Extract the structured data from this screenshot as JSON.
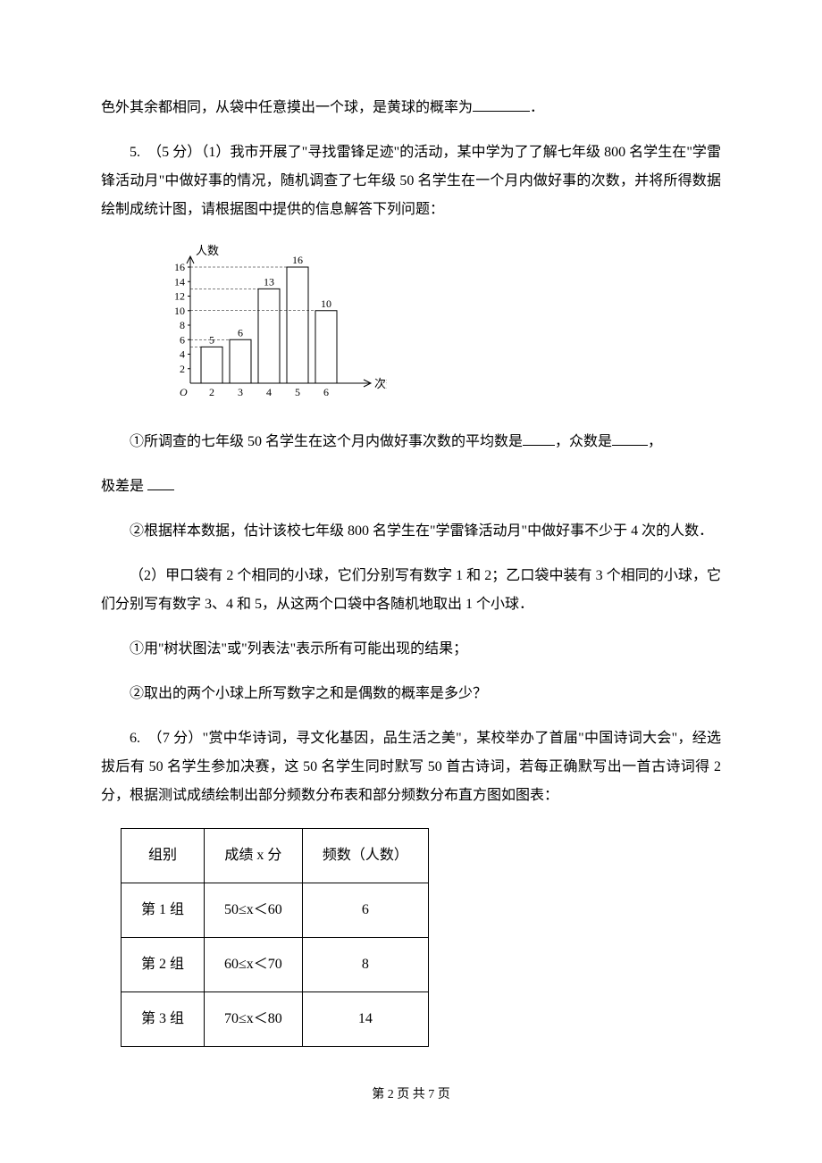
{
  "p1": {
    "text_a": "色外其余都相同，从袋中任意摸出一个球，是黄球的概率为",
    "text_b": "．"
  },
  "p2": {
    "text": "5.　（5 分）（1）我市开展了\"寻找雷锋足迹\"的活动，某中学为了了解七年级 800 名学生在\"学雷锋活动月\"中做好事的情况，随机调查了七年级 50 名学生在一个月内做好事的次数，并将所得数据绘制成统计图，请根据图中提供的信息解答下列问题："
  },
  "chart": {
    "y_label": "人数",
    "x_label": "次数",
    "y_ticks": [
      "2",
      "4",
      "6",
      "8",
      "10",
      "12",
      "14",
      "16"
    ],
    "x_ticks": [
      "2",
      "3",
      "4",
      "5",
      "6"
    ],
    "bar_values": [
      5,
      6,
      13,
      16,
      10
    ],
    "bar_labels": [
      "5",
      "6",
      "13",
      "16",
      "10"
    ],
    "axis_color": "#000000",
    "bar_fill": "#ffffff",
    "bar_stroke": "#000000",
    "tick_font": 12
  },
  "p3": {
    "a": "①所调查的七年级 50 名学生在这个月内做好事次数的平均数是",
    "b": "，众数是",
    "c": "，",
    "d": "极差是"
  },
  "p4": {
    "text": "②根据样本数据，估计该校七年级 800 名学生在\"学雷锋活动月\"中做好事不少于 4 次的人数．"
  },
  "p5": {
    "text": "（2）甲口袋有 2 个相同的小球，它们分别写有数字 1 和 2；乙口袋中装有 3 个相同的小球，它们分别写有数字 3、4 和 5，从这两个口袋中各随机地取出 1 个小球．"
  },
  "p6": {
    "text": "①用\"树状图法\"或\"列表法\"表示所有可能出现的结果；"
  },
  "p7": {
    "text": "②取出的两个小球上所写数字之和是偶数的概率是多少？"
  },
  "p8": {
    "text": "6.　（7 分）\"赏中华诗词，寻文化基因，品生活之美\"，某校举办了首届\"中国诗词大会\"，经选拔后有 50 名学生参加决赛，这 50 名学生同时默写 50 首古诗词，若每正确默写出一首古诗词得 2 分，根据测试成绩绘制出部分频数分布表和部分频数分布直方图如图表："
  },
  "table": {
    "headers": [
      "组别",
      "成绩 x 分",
      "频数（人数）"
    ],
    "rows": [
      [
        "第 1 组",
        "50≤x＜60",
        "6"
      ],
      [
        "第 2 组",
        "60≤x＜70",
        "8"
      ],
      [
        "第 3 组",
        "70≤x＜80",
        "14"
      ]
    ]
  },
  "footer": {
    "text": "第 2 页 共 7 页"
  }
}
